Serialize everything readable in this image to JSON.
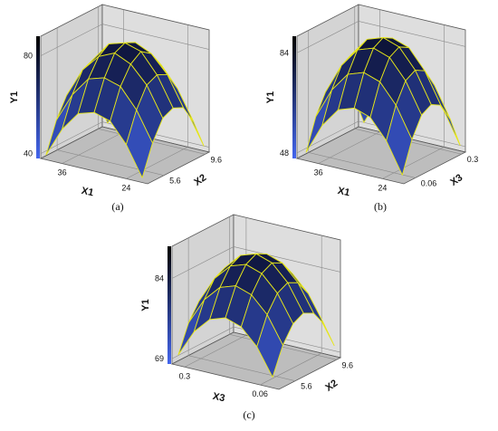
{
  "chart_data": [
    {
      "type": "surface",
      "label": "(a)",
      "x_label": "X1",
      "depth_label": "X2",
      "y_label": "Y1",
      "x": [
        39,
        36,
        33,
        30,
        27,
        24,
        21
      ],
      "xlim": [
        40,
        20
      ],
      "xticks": [
        36,
        24
      ],
      "depth": [
        4,
        5,
        6,
        7,
        8,
        9,
        10
      ],
      "depthlim": [
        4,
        10
      ],
      "depthticks": [
        5.6,
        9.6
      ],
      "ylim": [
        38,
        88
      ],
      "yticks": [
        40,
        80
      ],
      "values": [
        [
          40,
          52,
          60,
          62,
          60,
          52,
          40
        ],
        [
          52,
          64,
          72,
          74,
          72,
          64,
          52
        ],
        [
          60,
          72,
          79,
          82,
          79,
          72,
          60
        ],
        [
          62,
          74,
          82,
          84,
          82,
          74,
          62
        ],
        [
          60,
          72,
          79,
          82,
          79,
          72,
          60
        ],
        [
          52,
          64,
          72,
          74,
          72,
          64,
          52
        ],
        [
          40,
          52,
          60,
          62,
          60,
          52,
          40
        ]
      ],
      "color_low": "#4466ee",
      "color_high": "#080c28",
      "edge_color": "#e6e619"
    },
    {
      "type": "surface",
      "label": "(b)",
      "x_label": "X1",
      "depth_label": "X3",
      "y_label": "Y1",
      "x": [
        39,
        36,
        33,
        30,
        27,
        24,
        21
      ],
      "xlim": [
        40,
        20
      ],
      "xticks": [
        36,
        24
      ],
      "depth": [
        0.02,
        0.07,
        0.12,
        0.17,
        0.22,
        0.27,
        0.32
      ],
      "depthlim": [
        0,
        0.32
      ],
      "depthticks": [
        0.06,
        0.3
      ],
      "ylim": [
        46,
        90
      ],
      "yticks": [
        48,
        84
      ],
      "values": [
        [
          48,
          59,
          66,
          68,
          66,
          59,
          48
        ],
        [
          59,
          70,
          77,
          79,
          77,
          70,
          59
        ],
        [
          66,
          77,
          84,
          86,
          84,
          77,
          66
        ],
        [
          68,
          79,
          86,
          88,
          86,
          79,
          68
        ],
        [
          66,
          77,
          84,
          86,
          84,
          77,
          66
        ],
        [
          59,
          70,
          77,
          79,
          77,
          70,
          59
        ],
        [
          48,
          59,
          66,
          68,
          66,
          59,
          48
        ]
      ],
      "color_low": "#4466ee",
      "color_high": "#080c28",
      "edge_color": "#e6e619"
    },
    {
      "type": "surface",
      "label": "(c)",
      "x_label": "X3",
      "depth_label": "X2",
      "y_label": "Y1",
      "x": [
        0.32,
        0.27,
        0.22,
        0.17,
        0.12,
        0.07,
        0.02
      ],
      "xlim": [
        0.34,
        0
      ],
      "xticks": [
        0.3,
        0.06
      ],
      "depth": [
        4,
        5,
        6,
        7,
        8,
        9,
        10
      ],
      "depthlim": [
        4,
        10
      ],
      "depthticks": [
        5.6,
        9.6
      ],
      "ylim": [
        68,
        90
      ],
      "yticks": [
        69,
        84
      ],
      "values": [
        [
          70,
          75,
          78,
          79,
          78,
          75,
          70
        ],
        [
          75,
          80,
          83,
          84,
          83,
          80,
          75
        ],
        [
          78,
          83,
          86,
          87,
          86,
          83,
          78
        ],
        [
          79,
          84,
          87,
          88,
          87,
          84,
          79
        ],
        [
          78,
          83,
          86,
          87,
          86,
          83,
          78
        ],
        [
          75,
          80,
          83,
          84,
          83,
          80,
          75
        ],
        [
          70,
          75,
          78,
          79,
          78,
          75,
          70
        ]
      ],
      "color_low": "#4466ee",
      "color_high": "#080c28",
      "edge_color": "#e6e619"
    }
  ]
}
